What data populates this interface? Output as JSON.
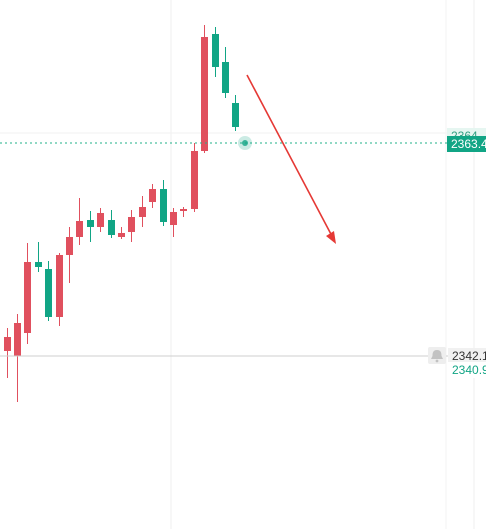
{
  "chart_data": {
    "type": "candlestick",
    "colors": {
      "up": "#e0505e",
      "down": "#11a585",
      "arrow": "#e53935",
      "price_line": "#22b08a",
      "hline": "#cfcfcf",
      "grid": "#eeeeee"
    },
    "price_labels": {
      "current": "2363.4",
      "current_partial": "2364",
      "horizontal_line": "2342.1",
      "below_line": "2340.9"
    },
    "candles": [
      {
        "o": 2342.6,
        "h": 2344.9,
        "l": 2339.9,
        "c": 2344.0
      },
      {
        "o": 2342.1,
        "h": 2346.3,
        "l": 2337.5,
        "c": 2345.4
      },
      {
        "o": 2344.4,
        "h": 2353.4,
        "l": 2343.3,
        "c": 2351.5
      },
      {
        "o": 2351.5,
        "h": 2353.5,
        "l": 2350.5,
        "c": 2351.0
      },
      {
        "o": 2350.8,
        "h": 2351.6,
        "l": 2345.6,
        "c": 2346.0
      },
      {
        "o": 2346.0,
        "h": 2352.4,
        "l": 2345.1,
        "c": 2352.2
      },
      {
        "o": 2352.2,
        "h": 2355.0,
        "l": 2349.4,
        "c": 2354.0
      },
      {
        "o": 2354.0,
        "h": 2357.9,
        "l": 2353.2,
        "c": 2355.6
      },
      {
        "o": 2355.7,
        "h": 2356.6,
        "l": 2353.5,
        "c": 2355.0
      },
      {
        "o": 2355.0,
        "h": 2356.9,
        "l": 2354.5,
        "c": 2356.4
      },
      {
        "o": 2355.7,
        "h": 2356.7,
        "l": 2353.9,
        "c": 2354.2
      },
      {
        "o": 2354.0,
        "h": 2355.0,
        "l": 2353.8,
        "c": 2354.4
      },
      {
        "o": 2354.5,
        "h": 2356.7,
        "l": 2353.5,
        "c": 2356.0
      },
      {
        "o": 2356.0,
        "h": 2358.1,
        "l": 2355.0,
        "c": 2357.0
      },
      {
        "o": 2357.5,
        "h": 2359.3,
        "l": 2356.9,
        "c": 2358.8
      },
      {
        "o": 2358.8,
        "h": 2359.7,
        "l": 2355.1,
        "c": 2355.5
      },
      {
        "o": 2355.2,
        "h": 2356.9,
        "l": 2354.0,
        "c": 2356.5
      },
      {
        "o": 2356.6,
        "h": 2357.0,
        "l": 2356.0,
        "c": 2356.8
      },
      {
        "o": 2356.8,
        "h": 2363.4,
        "l": 2356.5,
        "c": 2362.6
      },
      {
        "o": 2362.6,
        "h": 2375.2,
        "l": 2362.4,
        "c": 2374.0
      },
      {
        "o": 2374.3,
        "h": 2375.0,
        "l": 2370.0,
        "c": 2371.0
      },
      {
        "o": 2371.5,
        "h": 2373.0,
        "l": 2367.9,
        "c": 2368.4
      },
      {
        "o": 2367.4,
        "h": 2368.2,
        "l": 2364.6,
        "c": 2365.0
      }
    ]
  }
}
